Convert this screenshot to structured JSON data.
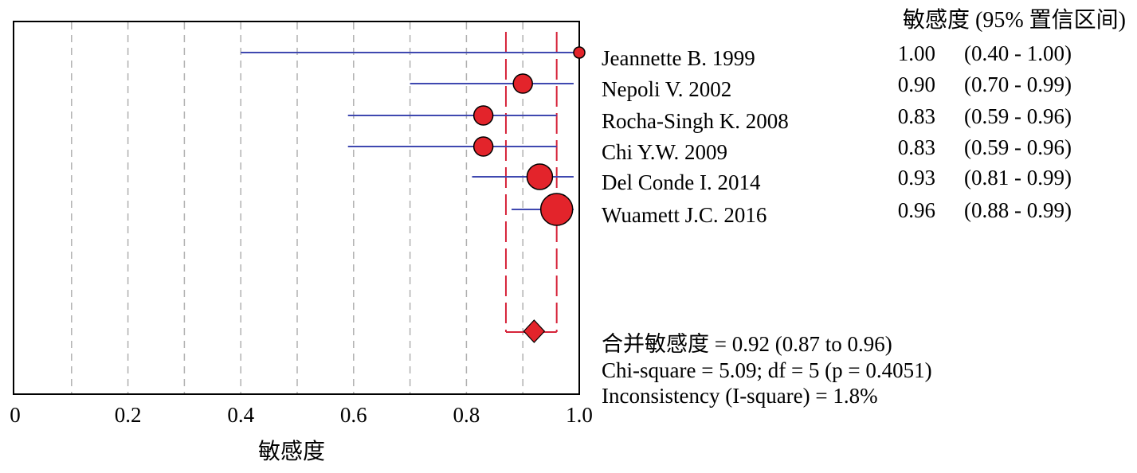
{
  "chart_data": {
    "type": "forest",
    "title": "",
    "xlabel": "敏感度",
    "xlim": [
      0,
      1.0
    ],
    "x_ticks": [
      "0",
      "0.2",
      "0.4",
      "0.6",
      "0.8",
      "1.0"
    ],
    "x_tick_values": [
      0,
      0.2,
      0.4,
      0.6,
      0.8,
      1.0
    ],
    "grid_values": [
      0.1,
      0.2,
      0.3,
      0.4,
      0.5,
      0.6,
      0.7,
      0.8,
      0.9
    ],
    "column_header": "敏感度 (95% 置信区间)",
    "studies": [
      {
        "name": "Jeannette B. 1999",
        "estimate": 1.0,
        "lower": 0.4,
        "upper": 1.0,
        "est_text": "1.00",
        "ci_text": "(0.40 - 1.00)",
        "weight": 1
      },
      {
        "name": "Nepoli V. 2002",
        "estimate": 0.9,
        "lower": 0.7,
        "upper": 0.99,
        "est_text": "0.90",
        "ci_text": "(0.70 - 0.99)",
        "weight": 2
      },
      {
        "name": "Rocha-Singh K. 2008",
        "estimate": 0.83,
        "lower": 0.59,
        "upper": 0.96,
        "est_text": "0.83",
        "ci_text": "(0.59 - 0.96)",
        "weight": 2
      },
      {
        "name": "Chi Y.W. 2009",
        "estimate": 0.83,
        "lower": 0.59,
        "upper": 0.96,
        "est_text": "0.83",
        "ci_text": "(0.59 - 0.96)",
        "weight": 2
      },
      {
        "name": "Del Conde I. 2014",
        "estimate": 0.93,
        "lower": 0.81,
        "upper": 0.99,
        "est_text": "0.93",
        "ci_text": "(0.81 - 0.99)",
        "weight": 3
      },
      {
        "name": "Wuamett J.C. 2016",
        "estimate": 0.96,
        "lower": 0.88,
        "upper": 0.99,
        "est_text": "0.96",
        "ci_text": "(0.88 - 0.99)",
        "weight": 4
      }
    ],
    "pooled": {
      "estimate": 0.92,
      "lower": 0.87,
      "upper": 0.96
    },
    "summary_lines": [
      "合并敏感度 = 0.92 (0.87 to 0.96)",
      "Chi-square = 5.09; df = 5 (p = 0.4051)",
      "Inconsistency (I-square) = 1.8%"
    ],
    "colors": {
      "marker": "#e3242b",
      "ci_line": "#3f48b0",
      "pooled_line": "#d6243a",
      "grid": "#b0b0b0"
    }
  }
}
